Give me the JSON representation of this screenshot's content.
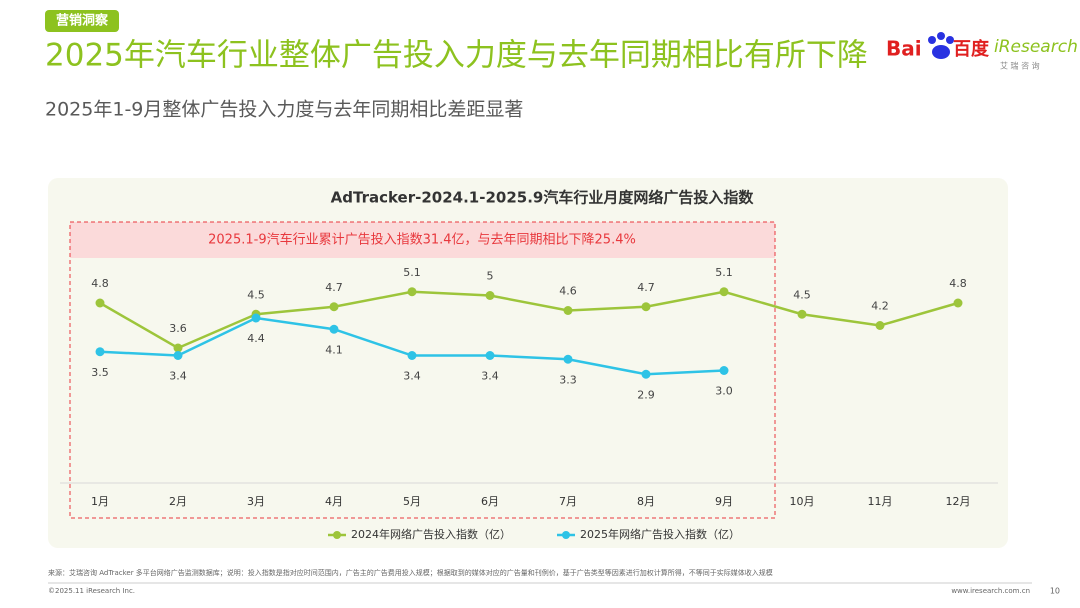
{
  "header": {
    "tag": "营销洞察",
    "title": "2025年汽车行业整体广告投入力度与去年同期相比有所下降",
    "subtitle": "2025年1-9月整体广告投入力度与去年同期相比差距显著",
    "logos": {
      "baidu_latin": "Bai",
      "baidu_cn": "百度",
      "iresearch": "iResearch",
      "iresearch_cn": "艾 瑞 咨 询"
    }
  },
  "chart_data": {
    "type": "line",
    "title": "AdTracker-2024.1-2025.9汽车行业月度网络广告投入指数",
    "annotation": "2025.1-9汽车行业累计广告投入指数31.4亿，与去年同期相比下降25.4%",
    "categories": [
      "1月",
      "2月",
      "3月",
      "4月",
      "5月",
      "6月",
      "7月",
      "8月",
      "9月",
      "10月",
      "11月",
      "12月"
    ],
    "series": [
      {
        "name": "2024年网络广告投入指数（亿）",
        "color": "#9dc53b",
        "values": [
          4.8,
          3.6,
          4.5,
          4.7,
          5.1,
          5,
          4.6,
          4.7,
          5.1,
          4.5,
          4.2,
          4.8
        ]
      },
      {
        "name": "2025年网络广告投入指数（亿）",
        "color": "#2ec3e6",
        "values": [
          3.5,
          3.4,
          4.4,
          4.1,
          3.4,
          3.4,
          3.3,
          2.9,
          3.0,
          null,
          null,
          null
        ],
        "value_labels": [
          "3.5",
          "3.4",
          "4.4",
          "4.1",
          "3.4",
          "3.4",
          "3.3",
          "2.9",
          "3.0",
          null,
          null,
          null
        ]
      }
    ],
    "ylim": [
      0,
      6
    ],
    "legend": "bottom"
  },
  "footer": {
    "source": "来源：艾瑞咨询 AdTracker 多平台网络广告监测数据库；说明：投入指数是指对应时间范围内，广告主的广告费用投入规模；根据取到的媒体对应的广告量和刊例价，基于广告类型等因素进行加权计算所得，不等同于实际媒体收入规模",
    "copyright": "©2025.11 iResearch Inc.",
    "url": "www.iresearch.com.cn",
    "page": "10"
  }
}
